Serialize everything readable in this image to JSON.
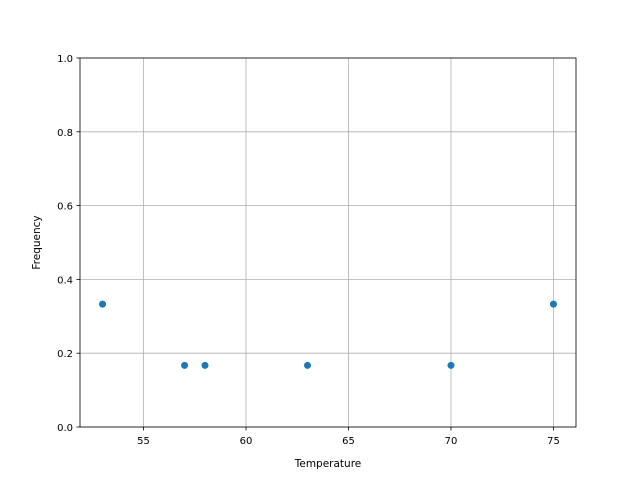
{
  "chart_data": {
    "type": "scatter",
    "title": "",
    "xlabel": "Temperature",
    "ylabel": "Frequency",
    "xlim": [
      51.9,
      76.1
    ],
    "ylim": [
      0,
      1
    ],
    "xticks": [
      55,
      60,
      65,
      70,
      75
    ],
    "xtick_labels": [
      "55",
      "60",
      "65",
      "70",
      "75"
    ],
    "yticks": [
      0,
      0.2,
      0.4,
      0.6,
      0.8,
      1.0
    ],
    "ytick_labels": [
      "0.0",
      "0.2",
      "0.4",
      "0.6",
      "0.8",
      "1.0"
    ],
    "grid": true,
    "color": "#1f77b4",
    "x": [
      53,
      57,
      58,
      63,
      70,
      75
    ],
    "y": [
      0.333,
      0.167,
      0.167,
      0.167,
      0.167,
      0.333
    ]
  }
}
